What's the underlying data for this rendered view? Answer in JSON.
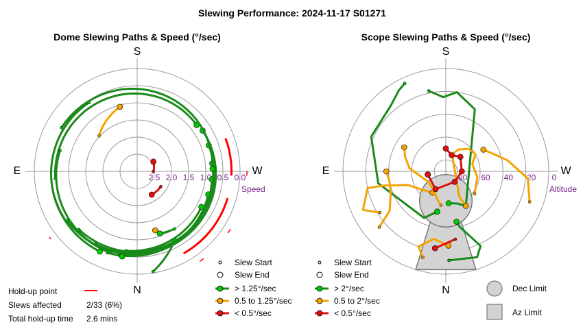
{
  "title": "Slewing Performance: 2024-11-17 S01271",
  "colors": {
    "fast": "#00cc00",
    "fast_line": "#1a8a1a",
    "medium": "#f4a300",
    "medium_line": "#f4a300",
    "slow": "#e01010",
    "slow_line": "#e01010",
    "holdup": "#ff0000",
    "tick": "#7a1f8c",
    "grid": "#999999",
    "limit": "#d3d3d3"
  },
  "chart_data": [
    {
      "type": "scatter",
      "title": "Dome Slewing Paths & Speed (°/sec)",
      "cardinals": {
        "top": "S",
        "bottom": "N",
        "left": "E",
        "right": "W"
      },
      "radial_axis": {
        "label": "Speed",
        "ticks": [
          "2.5",
          "2.0",
          "1.5",
          "1.0",
          "0.5",
          "0.0"
        ],
        "range": [
          3.0,
          0.0
        ]
      },
      "legend": [
        {
          "label": "Slew Start",
          "marker": "small-circle"
        },
        {
          "label": "Slew End",
          "marker": "large-circle"
        },
        {
          "label": "> 1.25°/sec",
          "color": "fast"
        },
        {
          "label": "0.5 to 1.25°/sec",
          "color": "medium"
        },
        {
          "label": "< 0.5°/sec",
          "color": "slow"
        }
      ],
      "stats": {
        "holdup_label": "Hold-up point",
        "slews_label": "Slews affected",
        "slews_value": "2/33 (6%)",
        "time_label": "Total hold-up time",
        "time_value": "2.6 mins"
      },
      "series": [
        {
          "speed": "slow",
          "start": [
            123,
            2.18
          ],
          "end": [
            148,
            2.2
          ]
        },
        {
          "speed": "slow",
          "start": [
            91,
            2.53
          ],
          "end": [
            59,
            2.45
          ]
        },
        {
          "speed": "medium",
          "start": [
            -47,
            1.48
          ],
          "end": [
            -15,
            1.05
          ]
        },
        {
          "speed": "medium",
          "start": [
            162,
            1.17
          ],
          "end": [
            163,
            1.2
          ]
        },
        {
          "speed": "fast",
          "start": [
            147,
            1.0
          ],
          "end": [
            160,
            1.07
          ]
        },
        {
          "speed": "fast",
          "start": [
            171,
            0.04
          ],
          "end": [
            152,
            0.7
          ]
        },
        {
          "speed": "fast",
          "start": [
            -172,
            0.66
          ],
          "end": [
            119,
            0.86
          ]
        },
        {
          "speed": "fast",
          "start": [
            -168,
            0.5
          ],
          "end": [
            108,
            0.82
          ]
        },
        {
          "speed": "fast",
          "start": [
            -160,
            0.47
          ],
          "end": [
            96,
            0.81
          ]
        },
        {
          "speed": "fast",
          "start": [
            -150,
            0.55
          ],
          "end": [
            84,
            0.8
          ]
        },
        {
          "speed": "fast",
          "start": [
            -135,
            0.6
          ],
          "end": [
            70,
            0.78
          ]
        },
        {
          "speed": "fast",
          "start": [
            -125,
            0.5
          ],
          "end": [
            58,
            0.75
          ]
        },
        {
          "speed": "fast",
          "start": [
            -95,
            0.6
          ],
          "end": [
            52,
            0.8
          ]
        },
        {
          "speed": "fast",
          "start": [
            -75,
            0.67
          ],
          "end": [
            -170,
            0.48
          ]
        },
        {
          "speed": "fast",
          "start": [
            -35,
            0.55
          ],
          "end": [
            -155,
            0.42
          ]
        },
        {
          "speed": "fast",
          "start": [
            -60,
            0.45
          ],
          "end": [
            88,
            0.8
          ]
        }
      ],
      "holdup_arcs": [
        {
          "az_from": 107,
          "az_to": 150,
          "r": 2.75
        },
        {
          "az_from": 70,
          "az_to": 92,
          "r": 2.75
        },
        {
          "az_from": 143,
          "az_to": 145,
          "r": 3.2
        },
        {
          "az_from": 122,
          "az_to": 124,
          "r": 3.2
        },
        {
          "az_from": 90,
          "az_to": 92,
          "r": 3.2
        },
        {
          "az_from": -128,
          "az_to": -127,
          "r": 3.2
        }
      ]
    },
    {
      "type": "scatter",
      "title": "Scope Slewing Paths & Speed (°/sec)",
      "cardinals": {
        "top": "S",
        "bottom": "N",
        "left": "E",
        "right": "W"
      },
      "radial_axis": {
        "label": "Altitude",
        "ticks": [
          "80",
          "60",
          "40",
          "20",
          "0"
        ],
        "range": [
          90,
          0
        ]
      },
      "legend": [
        {
          "label": "Slew Start",
          "marker": "small-circle"
        },
        {
          "label": "Slew End",
          "marker": "large-circle"
        },
        {
          "label": "> 2°/sec",
          "color": "fast"
        },
        {
          "label": "0.5 to 2°/sec",
          "color": "medium"
        },
        {
          "label": "< 0.5°/sec",
          "color": "slow"
        }
      ],
      "limits": [
        {
          "label": "Dec Limit",
          "shape": "circle"
        },
        {
          "label": "Az Limit",
          "shape": "square"
        }
      ],
      "dec_limit": {
        "az": 0,
        "alt": 60,
        "radius_deg": 23
      },
      "az_limit": {
        "az_from": -17,
        "az_to": 17,
        "alt_from": 56,
        "alt_to": 0
      },
      "series": [
        {
          "speed": "fast",
          "alt": [
            18,
            25,
            20,
            30,
            55,
            60,
            62
          ],
          "az": [
            -12,
            -2,
            8,
            25,
            150,
            160,
            175
          ]
        },
        {
          "speed": "fast",
          "alt": [
            5,
            8,
            15,
            18,
            30,
            45,
            54
          ],
          "az": [
            -25,
            -30,
            -40,
            -65,
            -100,
            -155,
            -168
          ]
        },
        {
          "speed": "fast",
          "alt": [
            12,
            10,
            18,
            40,
            45
          ],
          "az": [
            178,
            160,
            155,
            166,
            168
          ]
        },
        {
          "speed": "medium",
          "alt": [
            12,
            20,
            30,
            25
          ],
          "az": [
            -165,
            -160,
            -170,
            178
          ]
        },
        {
          "speed": "medium",
          "alt": [
            14,
            30,
            38,
            40,
            38
          ],
          "az": [
            -130,
            -125,
            -112,
            -100,
            -90
          ]
        },
        {
          "speed": "medium",
          "alt": [
            22,
            10,
            20,
            35,
            55,
            65,
            68
          ],
          "az": [
            -122,
            -115,
            -102,
            -103,
            -110,
            -132,
            -148
          ]
        },
        {
          "speed": "medium",
          "alt": [
            12,
            18,
            35,
            42,
            52
          ],
          "az": [
            110,
            95,
            80,
            74,
            60
          ]
        },
        {
          "speed": "medium",
          "alt": [
            58,
            62,
            66,
            60,
            62,
            68,
            74,
            65,
            55
          ],
          "az": [
            128,
            100,
            75,
            60,
            45,
            30,
            20,
            152,
            150
          ]
        },
        {
          "speed": "medium",
          "alt": [
            60,
            65,
            70,
            72,
            58,
            52,
            48
          ],
          "az": [
            -172,
            -162,
            -150,
            -120,
            -85,
            -70,
            -60
          ]
        },
        {
          "speed": "slow",
          "alt": [
            30,
            22
          ],
          "az": [
            172,
            -172
          ]
        },
        {
          "speed": "slow",
          "alt": [
            70,
            75,
            72,
            76,
            78,
            72,
            74
          ],
          "az": [
            0,
            20,
            45,
            90,
            140,
            -150,
            -100
          ]
        }
      ]
    }
  ]
}
